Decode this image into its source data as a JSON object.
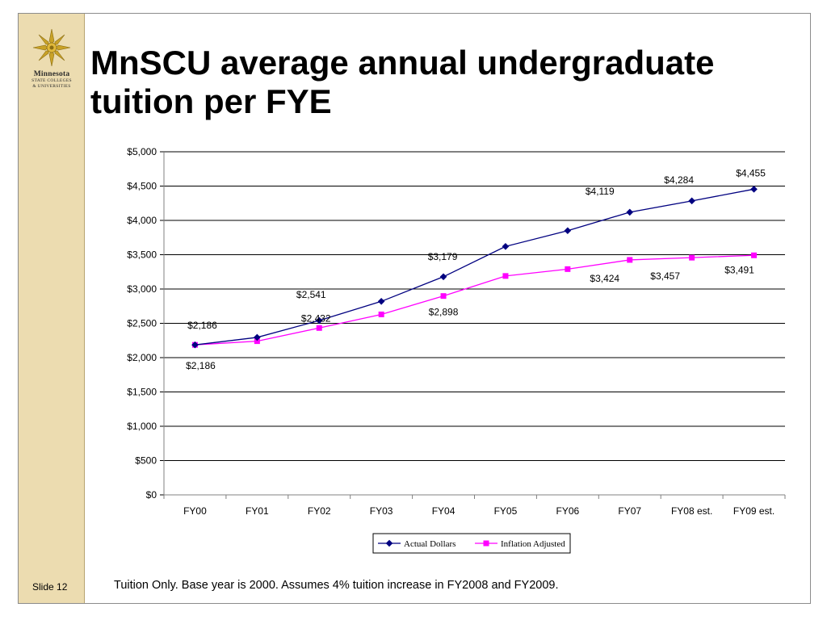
{
  "slide": {
    "title": "MnSCU average annual undergraduate tuition per FYE",
    "slide_number": "Slide 12",
    "footnote": "Tuition Only.  Base year is 2000.  Assumes 4% tuition increase in FY2008 and FY2009."
  },
  "logo": {
    "line1": "Minnesota",
    "line2": "STATE COLLEGES",
    "line3": "& UNIVERSITIES",
    "icon": "sunburst-star-icon"
  },
  "chart_data": {
    "type": "line",
    "categories": [
      "FY00",
      "FY01",
      "FY02",
      "FY03",
      "FY04",
      "FY05",
      "FY06",
      "FY07",
      "FY08 est.",
      "FY09 est."
    ],
    "ylim": [
      0,
      5000
    ],
    "yticks": [
      "$0",
      "$500",
      "$1,000",
      "$1,500",
      "$2,000",
      "$2,500",
      "$3,000",
      "$3,500",
      "$4,000",
      "$4,500",
      "$5,000"
    ],
    "ytick_values": [
      0,
      500,
      1000,
      1500,
      2000,
      2500,
      3000,
      3500,
      4000,
      4500,
      5000
    ],
    "grid": true,
    "legend_position": "bottom",
    "series": [
      {
        "name": "Actual Dollars",
        "color": "#000080",
        "marker": "diamond",
        "values": [
          2186,
          2295,
          2541,
          2820,
          3179,
          3620,
          3850,
          4119,
          4284,
          4455
        ],
        "labels": [
          "$2,186",
          null,
          "$2,541",
          null,
          "$3,179",
          null,
          null,
          "$4,119",
          "$4,284",
          "$4,455"
        ]
      },
      {
        "name": "Inflation Adjusted",
        "color": "#ff00ff",
        "marker": "square",
        "values": [
          2186,
          2240,
          2432,
          2630,
          2898,
          3190,
          3290,
          3424,
          3457,
          3491
        ],
        "labels": [
          "$2,186",
          null,
          "$2,432",
          null,
          "$2,898",
          null,
          null,
          "$3,424",
          "$3,457",
          "$3,491"
        ]
      }
    ]
  }
}
